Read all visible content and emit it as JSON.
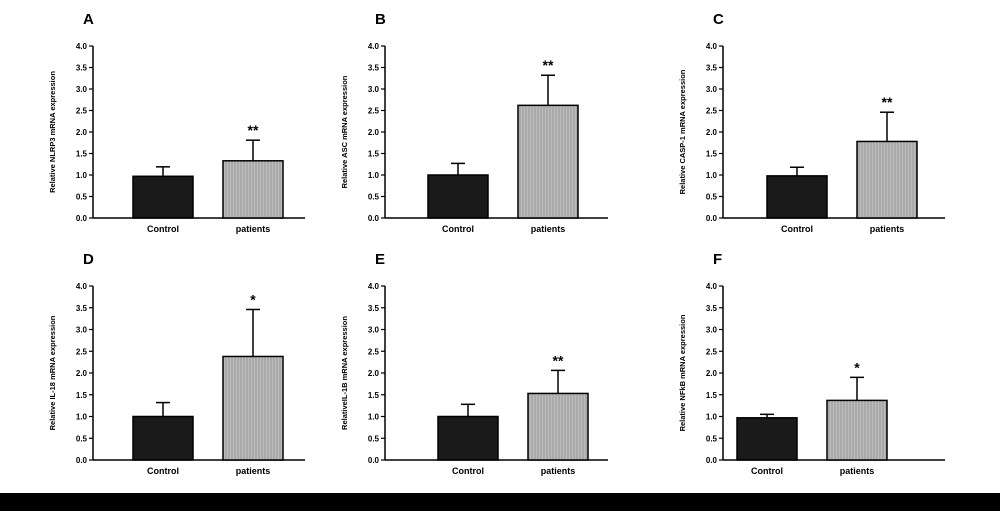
{
  "chart_data": [
    {
      "type": "bar",
      "panel": "A",
      "title": "",
      "xlabel": "",
      "ylabel": "Relative NLRP3 mRNA expression",
      "ylim": [
        0,
        4.0
      ],
      "yticks": [
        "0.0",
        "0.5",
        "1.0",
        "1.5",
        "2.0",
        "2.5",
        "3.0",
        "3.5",
        "4.0"
      ],
      "categories": [
        "Control",
        "patients"
      ],
      "values": [
        0.97,
        1.33
      ],
      "errors": [
        0.22,
        0.48
      ],
      "significance": [
        "",
        "**"
      ],
      "bar_fills": [
        "#1a1a1a",
        "#b4b4b4"
      ],
      "grid": false
    },
    {
      "type": "bar",
      "panel": "B",
      "title": "",
      "xlabel": "",
      "ylabel": "Relative ASC mRNA expression",
      "ylim": [
        0,
        4.0
      ],
      "yticks": [
        "0.0",
        "0.5",
        "1.0",
        "1.5",
        "2.0",
        "2.5",
        "3.0",
        "3.5",
        "4.0"
      ],
      "categories": [
        "Control",
        "patients"
      ],
      "values": [
        1.0,
        2.62
      ],
      "errors": [
        0.27,
        0.7
      ],
      "significance": [
        "",
        "**"
      ],
      "bar_fills": [
        "#1a1a1a",
        "#b4b4b4"
      ],
      "grid": false
    },
    {
      "type": "bar",
      "panel": "C",
      "title": "",
      "xlabel": "",
      "ylabel": "Relative CASP-1 mRNA expression",
      "ylim": [
        0,
        4.0
      ],
      "yticks": [
        "0.0",
        "0.5",
        "1.0",
        "1.5",
        "2.0",
        "2.5",
        "3.0",
        "3.5",
        "4.0"
      ],
      "categories": [
        "Control",
        "patients"
      ],
      "values": [
        0.98,
        1.78
      ],
      "errors": [
        0.2,
        0.68
      ],
      "significance": [
        "",
        "**"
      ],
      "bar_fills": [
        "#1a1a1a",
        "#b4b4b4"
      ],
      "grid": false
    },
    {
      "type": "bar",
      "panel": "D",
      "title": "",
      "xlabel": "",
      "ylabel": "Relative IL-18 mRNA expression",
      "ylim": [
        0,
        4.0
      ],
      "yticks": [
        "0.0",
        "0.5",
        "1.0",
        "1.5",
        "2.0",
        "2.5",
        "3.0",
        "3.5",
        "4.0"
      ],
      "categories": [
        "Control",
        "patients"
      ],
      "values": [
        1.0,
        2.38
      ],
      "errors": [
        0.32,
        1.08
      ],
      "significance": [
        "",
        "*"
      ],
      "bar_fills": [
        "#1a1a1a",
        "#b4b4b4"
      ],
      "grid": false
    },
    {
      "type": "bar",
      "panel": "E",
      "title": "",
      "xlabel": "",
      "ylabel": "RelativeIL-1B mRNA expression",
      "ylim": [
        0,
        4.0
      ],
      "yticks": [
        "0.0",
        "0.5",
        "1.0",
        "1.5",
        "2.0",
        "2.5",
        "3.0",
        "3.5",
        "4.0"
      ],
      "categories": [
        "Control",
        "patients"
      ],
      "values": [
        1.0,
        1.53
      ],
      "errors": [
        0.28,
        0.53
      ],
      "significance": [
        "",
        "**"
      ],
      "bar_fills": [
        "#1a1a1a",
        "#b4b4b4"
      ],
      "grid": false
    },
    {
      "type": "bar",
      "panel": "F",
      "title": "",
      "xlabel": "",
      "ylabel": "Relative NFkB mRNA expression",
      "ylim": [
        0,
        4.0
      ],
      "yticks": [
        "0.0",
        "0.5",
        "1.0",
        "1.5",
        "2.0",
        "2.5",
        "3.0",
        "3.5",
        "4.0"
      ],
      "categories": [
        "Control",
        "patients"
      ],
      "values": [
        0.97,
        1.37
      ],
      "errors": [
        0.08,
        0.53
      ],
      "significance": [
        "",
        "*"
      ],
      "bar_fills": [
        "#1a1a1a",
        "#b4b4b4"
      ],
      "grid": false
    }
  ]
}
